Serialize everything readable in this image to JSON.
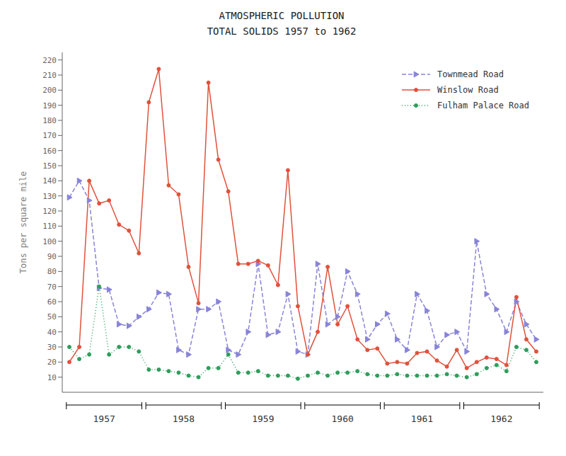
{
  "chart_data": {
    "type": "line",
    "title": "ATMOSPHERIC  POLLUTION",
    "subtitle": "TOTAL SOLIDS 1957 to 1962",
    "y_label": "Tons per square mile",
    "categories": [
      "1957",
      null,
      null,
      null,
      null,
      null,
      null,
      null,
      "1958",
      null,
      null,
      null,
      null,
      null,
      null,
      null,
      "1959",
      null,
      null,
      null,
      null,
      null,
      null,
      null,
      "1960",
      null,
      null,
      null,
      null,
      null,
      null,
      null,
      "1961",
      null,
      null,
      null,
      null,
      null,
      null,
      null,
      "1962",
      null,
      null,
      null,
      null,
      null,
      null,
      null
    ],
    "series": [
      {
        "name": "Townmead Road",
        "color": "#8884d8",
        "marker": "triangle",
        "line_style": "dashed",
        "values": [
          129,
          140,
          127,
          69,
          68,
          45,
          44,
          50,
          55,
          66,
          65,
          28,
          25,
          55,
          55,
          60,
          28,
          25,
          40,
          85,
          38,
          40,
          65,
          27,
          25,
          85,
          45,
          50,
          80,
          65,
          35,
          45,
          52,
          35,
          28,
          65,
          54,
          30,
          38,
          40,
          27,
          100,
          65,
          55,
          40,
          60,
          45,
          35
        ]
      },
      {
        "name": "Winslow Road",
        "color": "#e0523c",
        "marker": "circle",
        "line_style": "solid",
        "values": [
          20,
          30,
          140,
          125,
          127,
          111,
          107,
          92,
          192,
          214,
          137,
          131,
          83,
          59,
          205,
          154,
          133,
          85,
          85,
          87,
          84,
          71,
          147,
          57,
          25,
          40,
          83,
          45,
          57,
          35,
          28,
          29,
          19,
          20,
          19,
          26,
          27,
          21,
          17,
          28,
          16,
          20,
          23,
          22,
          18,
          63,
          35,
          27
        ]
      },
      {
        "name": "Fulham Palace Road",
        "color": "#2e9e5b",
        "marker": "circle",
        "line_style": "dotted",
        "values": [
          30,
          22,
          25,
          70,
          25,
          30,
          30,
          27,
          15,
          15,
          14,
          13,
          11,
          10,
          16,
          16,
          25,
          13,
          13,
          14,
          11,
          11,
          11,
          9,
          11,
          13,
          11,
          13,
          13,
          14,
          12,
          11,
          11,
          12,
          11,
          11,
          11,
          11,
          12,
          11,
          10,
          12,
          16,
          18,
          14,
          30,
          28,
          20
        ]
      }
    ],
    "ylim": [
      0,
      225
    ],
    "yticks": [
      10,
      20,
      30,
      40,
      50,
      60,
      70,
      80,
      90,
      100,
      110,
      120,
      130,
      140,
      150,
      160,
      170,
      180,
      190,
      200,
      210,
      220
    ],
    "grid": false,
    "legend": "upper right"
  }
}
